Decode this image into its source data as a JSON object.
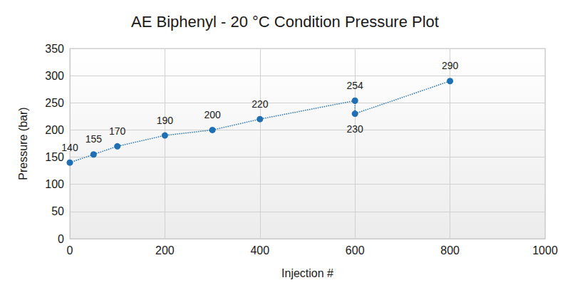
{
  "chart_data": {
    "type": "line",
    "title": "AE Biphenyl - 20 °C Condition Pressure Plot",
    "x_label": "Injection #",
    "y_label": "Pressure (bar)",
    "x": [
      0,
      50,
      100,
      200,
      300,
      400,
      600,
      600,
      800
    ],
    "values": [
      140,
      155,
      170,
      190,
      200,
      220,
      254,
      230,
      290
    ],
    "color": "#1f6fb4",
    "line_style": "dotted",
    "marker": "circle",
    "data_labels": true,
    "xlim": [
      0,
      1000
    ],
    "xticks": [
      0,
      200,
      400,
      600,
      800,
      1000
    ],
    "ylim": [
      0,
      350
    ],
    "yticks": [
      0,
      50,
      100,
      150,
      200,
      250,
      300,
      350
    ],
    "grid": true
  }
}
